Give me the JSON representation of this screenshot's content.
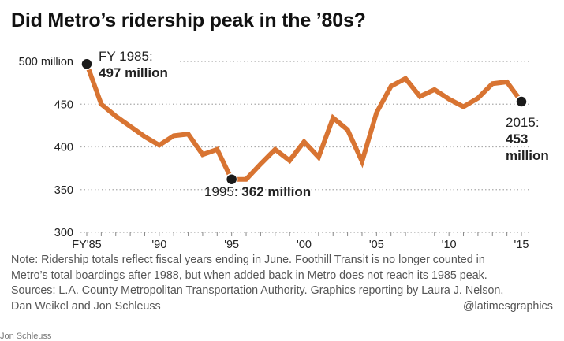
{
  "chart_data": {
    "type": "line",
    "title": "Did Metro’s ridership peak in the ’80s?",
    "xlabel": "",
    "ylabel": "",
    "x": [
      1985,
      1986,
      1987,
      1988,
      1989,
      1990,
      1991,
      1992,
      1993,
      1994,
      1995,
      1996,
      1997,
      1998,
      1999,
      2000,
      2001,
      2002,
      2003,
      2004,
      2005,
      2006,
      2007,
      2008,
      2009,
      2010,
      2011,
      2012,
      2013,
      2014,
      2015
    ],
    "series": [
      {
        "name": "Ridership (millions)",
        "color": "#d87432",
        "values": [
          497,
          450,
          436,
          424,
          412,
          402,
          413,
          415,
          391,
          397,
          362,
          362,
          380,
          397,
          384,
          406,
          388,
          434,
          420,
          383,
          440,
          471,
          480,
          459,
          467,
          456,
          447,
          457,
          474,
          476,
          453
        ]
      }
    ],
    "ylim": [
      300,
      500
    ],
    "yticks": [
      {
        "value": 500,
        "label": "500 million"
      },
      {
        "value": 450,
        "label": "450"
      },
      {
        "value": 400,
        "label": "400"
      },
      {
        "value": 350,
        "label": "350"
      },
      {
        "value": 300,
        "label": "300"
      }
    ],
    "xticks": [
      {
        "value": 1985,
        "label": "FY'85"
      },
      {
        "value": 1990,
        "label": "'90"
      },
      {
        "value": 1995,
        "label": "'95"
      },
      {
        "value": 2000,
        "label": "'00"
      },
      {
        "value": 2005,
        "label": "'05"
      },
      {
        "value": 2010,
        "label": "'10"
      },
      {
        "value": 2015,
        "label": "'15"
      }
    ],
    "grid": true,
    "annotations": [
      {
        "year": 1985,
        "line1": "FY 1985:",
        "value": "497 million"
      },
      {
        "year": 1995,
        "line1": "1995:",
        "value": "362 million"
      },
      {
        "year": 2015,
        "line1": "2015:",
        "value": "453",
        "value2": "million"
      }
    ]
  },
  "notes": [
    "Note: Ridership totals reflect fiscal years ending in June. Foothill Transit is no longer counted in",
    "Metro’s total boardings after 1988, but when added back in Metro does not reach its 1985 peak.",
    "Sources: L.A. County Metropolitan Transportation Authority. Graphics reporting by Laura J. Nelson,",
    "Dan Weikel and Jon Schleuss"
  ],
  "handle": "@latimesgraphics",
  "credit": "Jon Schleuss"
}
